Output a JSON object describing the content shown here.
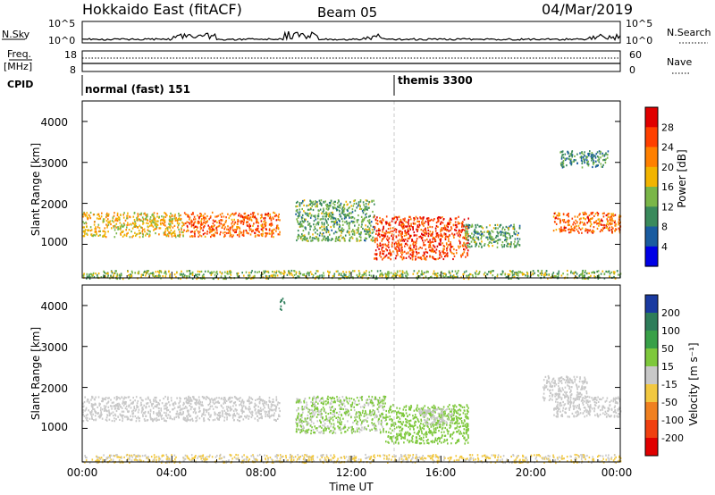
{
  "header": {
    "radar": "Hokkaido East (fitACF)",
    "beam": "Beam 05",
    "date": "04/Mar/2019"
  },
  "strip": {
    "nsky_label": "N.Sky",
    "nsky_ticks": [
      "10^5",
      "10^0"
    ],
    "nsearch_label": "N.Search",
    "freq_label_1": "Freq.",
    "freq_label_2": "[MHz]",
    "freq_ticks": [
      "18",
      "8"
    ],
    "nave_label": "Nave",
    "nave_ticks": [
      "60",
      "0"
    ],
    "cpid_label": "CPID",
    "cpid_segments": [
      {
        "label": "normal (fast) 151",
        "start": 0
      },
      {
        "label": "themis 3300",
        "start": 14
      }
    ]
  },
  "power_panel": {
    "ylabel": "Slant Range [km]",
    "yticks": [
      "1000",
      "2000",
      "3000",
      "4000"
    ],
    "colorbar_label": "Power [dB]",
    "colorbar_ticks": [
      "28",
      "24",
      "20",
      "16",
      "12",
      "8",
      "4"
    ],
    "colors": [
      "#e00000",
      "#ff4000",
      "#ff8000",
      "#f2b400",
      "#7ab648",
      "#3a8a5c",
      "#1a5ca0",
      "#0000e6"
    ]
  },
  "velocity_panel": {
    "ylabel": "Slant Range [km]",
    "yticks": [
      "1000",
      "2000",
      "3000",
      "4000"
    ],
    "colorbar_label": "Velocity [m s⁻¹]",
    "colorbar_ticks": [
      "200",
      "100",
      "50",
      "15",
      "-15",
      "-50",
      "-100",
      "-200"
    ],
    "colors": [
      "#1a3aa0",
      "#2e7d5a",
      "#38a048",
      "#7ec83c",
      "#c8c8c8",
      "#f2c840",
      "#f08020",
      "#f04010",
      "#e00000"
    ]
  },
  "xaxis": {
    "ticks": [
      "00:00",
      "04:00",
      "08:00",
      "12:00",
      "16:00",
      "20:00",
      "00:00"
    ],
    "label": "Time UT"
  },
  "chart_data": [
    {
      "type": "heatmap",
      "x_range_hours": [
        0,
        24
      ],
      "y_range_km": [
        180,
        4500
      ],
      "colorbar_range_db": [
        0,
        32
      ],
      "marker_line_hours": 14,
      "regions": [
        {
          "t0": 0.0,
          "t1": 4.5,
          "r0": 1200,
          "r1": 1800,
          "value_db": 18
        },
        {
          "t0": 4.5,
          "t1": 8.8,
          "r0": 1200,
          "r1": 1800,
          "value_db": 24
        },
        {
          "t0": 9.5,
          "t1": 13.0,
          "r0": 1100,
          "r1": 2100,
          "value_db": 12
        },
        {
          "t0": 13.0,
          "t1": 17.2,
          "r0": 650,
          "r1": 1700,
          "value_db": 26
        },
        {
          "t0": 17.0,
          "t1": 19.5,
          "r0": 950,
          "r1": 1500,
          "value_db": 12
        },
        {
          "t0": 21.0,
          "t1": 24.0,
          "r0": 1300,
          "r1": 1800,
          "value_db": 24
        },
        {
          "t0": 21.3,
          "t1": 23.5,
          "r0": 2900,
          "r1": 3300,
          "value_db": 10
        },
        {
          "t0": 0.0,
          "t1": 24.0,
          "r0": 180,
          "r1": 380,
          "value_db": 14
        }
      ]
    },
    {
      "type": "heatmap",
      "x_range_hours": [
        0,
        24
      ],
      "y_range_km": [
        180,
        4500
      ],
      "colorbar_range_ms": [
        -250,
        250
      ],
      "marker_line_hours": 14,
      "regions": [
        {
          "t0": 0.0,
          "t1": 8.8,
          "r0": 1200,
          "r1": 1800,
          "value_ms": 0
        },
        {
          "t0": 9.5,
          "t1": 13.5,
          "r0": 900,
          "r1": 1800,
          "value_ms": 30
        },
        {
          "t0": 13.5,
          "t1": 17.2,
          "r0": 650,
          "r1": 1600,
          "value_ms": 60
        },
        {
          "t0": 15.0,
          "t1": 16.5,
          "r0": 1100,
          "r1": 1500,
          "value_ms": 0
        },
        {
          "t0": 21.0,
          "t1": 24.0,
          "r0": 1300,
          "r1": 1800,
          "value_ms": 0
        },
        {
          "t0": 20.5,
          "t1": 22.5,
          "r0": 1700,
          "r1": 2300,
          "value_ms": 0
        },
        {
          "t0": 8.8,
          "t1": 9.0,
          "r0": 3900,
          "r1": 4200,
          "value_ms": 150
        },
        {
          "t0": 0.0,
          "t1": 24.0,
          "r0": 180,
          "r1": 380,
          "value_ms": -30
        }
      ]
    }
  ]
}
